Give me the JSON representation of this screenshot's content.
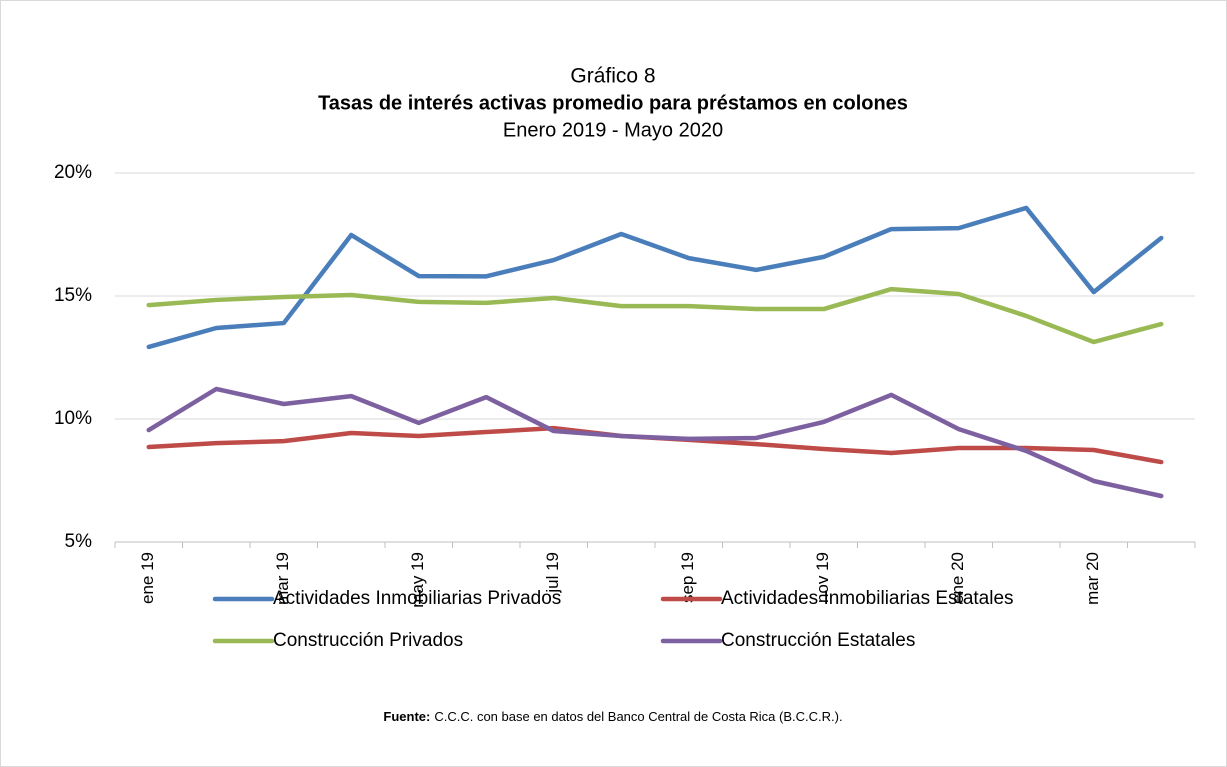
{
  "chart_data": {
    "type": "line",
    "title_prefix": "Gráfico 8",
    "title": "Tasas de interés activas promedio para préstamos en colones",
    "subtitle": "Enero 2019 - Mayo 2020",
    "categories": [
      "ene 19",
      null,
      "mar 19",
      null,
      "may 19",
      null,
      "jul 19",
      null,
      "sep 19",
      null,
      "nov 19",
      null,
      "ene 20",
      null,
      "mar 20",
      null
    ],
    "series": [
      {
        "name": "Actividades Inmobiliarias Privados",
        "color": "#4a7ebb",
        "values": [
          12.93,
          13.7,
          13.9,
          17.48,
          15.81,
          15.8,
          16.46,
          17.52,
          16.54,
          16.06,
          16.59,
          17.72,
          17.76,
          18.58,
          15.16,
          17.36
        ]
      },
      {
        "name": "Actividades Inmobiliarias Estatales",
        "color": "#be4b48",
        "values": [
          8.86,
          9.02,
          9.1,
          9.43,
          9.31,
          9.47,
          9.63,
          9.31,
          9.15,
          8.98,
          8.78,
          8.62,
          8.82,
          8.82,
          8.74,
          8.25
        ]
      },
      {
        "name": "Construcción Privados",
        "color": "#98b954",
        "values": [
          14.63,
          14.84,
          14.96,
          15.04,
          14.76,
          14.72,
          14.92,
          14.59,
          14.59,
          14.47,
          14.47,
          15.28,
          15.08,
          14.19,
          13.13,
          13.86
        ]
      },
      {
        "name": "Construcción Estatales",
        "color": "#7d60a0",
        "values": [
          9.55,
          11.22,
          10.61,
          10.93,
          9.84,
          10.89,
          9.51,
          9.31,
          9.19,
          9.23,
          9.88,
          10.98,
          9.59,
          8.7,
          7.48,
          6.87
        ]
      }
    ],
    "ylim": [
      5,
      20
    ],
    "yticks": [
      {
        "value": 5,
        "label": "5%"
      },
      {
        "value": 10,
        "label": "10%"
      },
      {
        "value": 15,
        "label": "15%"
      },
      {
        "value": 20,
        "label": "20%"
      }
    ],
    "grid": true,
    "legend": "bottom",
    "source_label": "Fuente:",
    "source": "C.C.C. con base en datos del Banco Central de Costa Rica (B.C.C.R.)."
  }
}
